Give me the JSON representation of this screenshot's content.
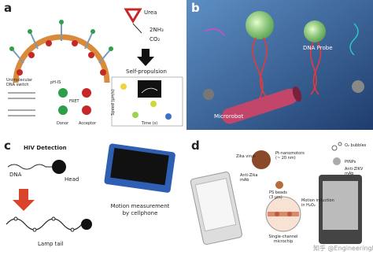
{
  "panel_a": {
    "label": "a",
    "urea": "Urea",
    "ammonia": "2NH₃",
    "co2": "CO₂",
    "propulsion": "Self-propulsion",
    "switch_line1": "Unimolecular",
    "switch_line2": "DNA switch",
    "ph_is": "pH-IS",
    "fret": "FRET",
    "donor": "Donor",
    "acceptor": "Acceptor",
    "speed_axis": "Speed (μm/s)",
    "time_axis": "Time (s)"
  },
  "panel_b": {
    "label": "b",
    "probe": "DNA Probe",
    "robot": "Microrobot"
  },
  "panel_c": {
    "label": "c",
    "title": "HIV Detection",
    "dna": "DNA",
    "head": "Head",
    "tail": "Lamp tail",
    "measure_line1": "Motion measurement",
    "measure_line2": "by cellphone"
  },
  "panel_d": {
    "label": "d",
    "bubbles": "O₂ bubbles",
    "virus": "Zika virus",
    "nanomotors_line1": "Pt-nanomotors",
    "nanomotors_line2": "(~ 20 nm)",
    "ptnps": "PtNPs",
    "anti_zikv_line1": "Anti-ZIKV",
    "anti_zikv_line2": "mAb",
    "anti_zika_line1": "Anti-Zika",
    "anti_zika_line2": "mAb",
    "beads_line1": "PS beads",
    "beads_line2": "(3 μm)",
    "motion_line1": "Motion induction",
    "motion_line2": "in H₂O₂",
    "chip_line1": "Single-channel",
    "chip_line2": "microchip"
  },
  "watermark": "知乎 @EngineeringForLife"
}
